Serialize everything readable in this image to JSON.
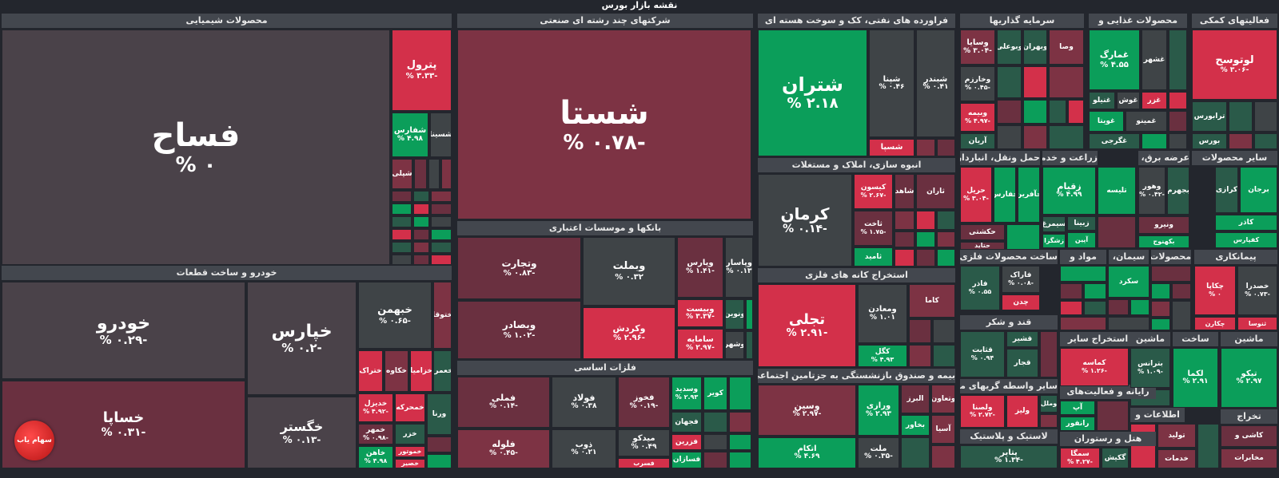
{
  "page": {
    "title": "نقشه بازار بورس"
  },
  "colors": {
    "neutral": "#4a4249",
    "dark_red": "#6a3040",
    "mid_red": "#7d3344",
    "red": "#d3304a",
    "dark_green": "#2a5a49",
    "green": "#0b9e5a",
    "gray": "#3f4447"
  },
  "logo": {
    "label": "سهام یاب",
    "icon": "chart-line-icon"
  },
  "sectors": [
    {
      "name": "محصولات شیمیایی"
    },
    {
      "name": "شرکتهای چند رشته ای صنعتی"
    },
    {
      "name": "فراورده های نفتی، کک و سوخت هسته ای"
    },
    {
      "name": "سرمایه گذاریها"
    },
    {
      "name": "محصولات غذایی و"
    },
    {
      "name": "فعالیتهای کمکی"
    },
    {
      "name": "خودرو و ساخت قطعات"
    },
    {
      "name": "بانکها و موسسات اعتباری"
    },
    {
      "name": "فلزات اساسی"
    },
    {
      "name": "انبوه سازی، املاک و مستغلات"
    },
    {
      "name": "استخراج کانه های فلزی"
    },
    {
      "name": "بیمه و صندوق بازنشستگی به جزتامین اجتماعی"
    },
    {
      "name": "حمل ونقل، انبارداری"
    },
    {
      "name": "زراعت و خدمات"
    },
    {
      "name": "عرضه برق، گاز"
    },
    {
      "name": "سایر محصولات"
    },
    {
      "name": "ساخت محصولات فلزی"
    },
    {
      "name": "مواد و"
    },
    {
      "name": "سیمان،"
    },
    {
      "name": "محصولات"
    },
    {
      "name": "پیمانکاری"
    },
    {
      "name": "قند و شکر"
    },
    {
      "name": "استخراج سایر"
    },
    {
      "name": "ماشین"
    },
    {
      "name": "ساخت"
    },
    {
      "name": "ماشین"
    },
    {
      "name": "سایر واسطه گریهای مالی"
    },
    {
      "name": "رایانه و فعالیت‌های"
    },
    {
      "name": "اطلاعات و"
    },
    {
      "name": "تخراج"
    },
    {
      "name": "لاستیک و پلاستیک"
    },
    {
      "name": "هتل و رستوران"
    }
  ],
  "tiles": [
    {
      "symbol": "فساح",
      "change": "۰ %"
    },
    {
      "symbol": "پترول",
      "change": "-۳.۳۳ %"
    },
    {
      "symbol": "شفارس",
      "change": "۴.۹۸ %"
    },
    {
      "symbol": "شسینا",
      "change": ""
    },
    {
      "symbol": "شپلی",
      "change": ""
    },
    {
      "symbol": "شستا",
      "change": "-۰.۷۸ %"
    },
    {
      "symbol": "شتران",
      "change": "۲.۱۸ %"
    },
    {
      "symbol": "شپنا",
      "change": "۰.۴۶ %"
    },
    {
      "symbol": "شبندر",
      "change": "۰.۴۱ %"
    },
    {
      "symbol": "شسپا",
      "change": ""
    },
    {
      "symbol": "وسایا",
      "change": "-۳.۰۴ %"
    },
    {
      "symbol": "وبوعلی",
      "change": ""
    },
    {
      "symbol": "وبهران",
      "change": ""
    },
    {
      "symbol": "وصا",
      "change": ""
    },
    {
      "symbol": "وخارزم",
      "change": "-۰.۴۵ %"
    },
    {
      "symbol": "وبیمه",
      "change": "-۴.۹۷ %"
    },
    {
      "symbol": "آریان",
      "change": ""
    },
    {
      "symbol": "غمارگ",
      "change": "۴.۵۵ %"
    },
    {
      "symbol": "غشهر",
      "change": ""
    },
    {
      "symbol": "غنیلو",
      "change": ""
    },
    {
      "symbol": "غوش",
      "change": ""
    },
    {
      "symbol": "غزر",
      "change": ""
    },
    {
      "symbol": "غویتا",
      "change": ""
    },
    {
      "symbol": "غمینو",
      "change": ""
    },
    {
      "symbol": "غگرجی",
      "change": ""
    },
    {
      "symbol": "لوتوسح",
      "change": "-۳.۰۶ %"
    },
    {
      "symbol": "ترابورس",
      "change": ""
    },
    {
      "symbol": "بورس",
      "change": ""
    },
    {
      "symbol": "خودرو",
      "change": "-۰.۲۹ %"
    },
    {
      "symbol": "خپارس",
      "change": "-۰.۲ %"
    },
    {
      "symbol": "خبهمن",
      "change": "-۰.۶۵ %"
    },
    {
      "symbol": "ختوقا",
      "change": ""
    },
    {
      "symbol": "خساپا",
      "change": "-۰.۳۱ %"
    },
    {
      "symbol": "خگستر",
      "change": "-۰.۱۳ %"
    },
    {
      "symbol": "ختراک",
      "change": ""
    },
    {
      "symbol": "خکاوه",
      "change": ""
    },
    {
      "symbol": "خزامیا",
      "change": ""
    },
    {
      "symbol": "خعمرا",
      "change": ""
    },
    {
      "symbol": "خدیزل",
      "change": "-۴.۹۲ %"
    },
    {
      "symbol": "خمحرکه",
      "change": ""
    },
    {
      "symbol": "ورنا",
      "change": ""
    },
    {
      "symbol": "خمهر",
      "change": "-۰.۹۸ %"
    },
    {
      "symbol": "خزر",
      "change": ""
    },
    {
      "symbol": "خاهن",
      "change": "۴.۹۸ %"
    },
    {
      "symbol": "خموتور",
      "change": ""
    },
    {
      "symbol": "خصیر",
      "change": ""
    },
    {
      "symbol": "وتجارت",
      "change": "-۰.۸۳ %"
    },
    {
      "symbol": "وبملت",
      "change": "۰.۳۲ %"
    },
    {
      "symbol": "وپارس",
      "change": "-۱.۴۱ %"
    },
    {
      "symbol": "وپاسار",
      "change": "۰.۱۳ %"
    },
    {
      "symbol": "وبصادر",
      "change": "-۱.۰۲ %"
    },
    {
      "symbol": "وکردش",
      "change": "-۲.۹۶ %"
    },
    {
      "symbol": "وبیست",
      "change": "-۳.۳۷ %"
    },
    {
      "symbol": "سامایه",
      "change": "-۲.۹۷ %"
    },
    {
      "symbol": "ونوین",
      "change": ""
    },
    {
      "symbol": "وشهر",
      "change": ""
    },
    {
      "symbol": "فملی",
      "change": "-۰.۱۴ %"
    },
    {
      "symbol": "فولاد",
      "change": "۰.۳۸ %"
    },
    {
      "symbol": "فخوز",
      "change": "-۰.۱۹ %"
    },
    {
      "symbol": "وسدید",
      "change": "۲.۹۳ %"
    },
    {
      "symbol": "کویر",
      "change": ""
    },
    {
      "symbol": "فجهان",
      "change": ""
    },
    {
      "symbol": "فلوله",
      "change": "-۰.۴۵ %"
    },
    {
      "symbol": "ذوب",
      "change": "۰.۲۱ %"
    },
    {
      "symbol": "میدکو",
      "change": "۰.۴۹ %"
    },
    {
      "symbol": "فزرین",
      "change": ""
    },
    {
      "symbol": "فسازان",
      "change": ""
    },
    {
      "symbol": "فسرب",
      "change": ""
    },
    {
      "symbol": "کرمان",
      "change": "-۰.۱۴ %"
    },
    {
      "symbol": "کیسون",
      "change": "-۲.۶۷ %"
    },
    {
      "symbol": "شاهد",
      "change": ""
    },
    {
      "symbol": "ثاران",
      "change": ""
    },
    {
      "symbol": "ثاخت",
      "change": "-۱.۷۵ %"
    },
    {
      "symbol": "ثامید",
      "change": ""
    },
    {
      "symbol": "تجلی",
      "change": "-۲.۹۱ %"
    },
    {
      "symbol": "ومعادن",
      "change": "۱.۰۱ %"
    },
    {
      "symbol": "کاما",
      "change": ""
    },
    {
      "symbol": "کگل",
      "change": "۴.۹۳ %"
    },
    {
      "symbol": "وسین",
      "change": "-۲.۹۷ %"
    },
    {
      "symbol": "ورازی",
      "change": "۲.۹۳ %"
    },
    {
      "symbol": "البرز",
      "change": ""
    },
    {
      "symbol": "وتعاون",
      "change": ""
    },
    {
      "symbol": "بخاور",
      "change": ""
    },
    {
      "symbol": "آسیا",
      "change": ""
    },
    {
      "symbol": "اتکام",
      "change": "۴.۶۹ %"
    },
    {
      "symbol": "ملت",
      "change": "-۰.۳۵ %"
    },
    {
      "symbol": "حریل",
      "change": "-۳.۰۴ %"
    },
    {
      "symbol": "حفارس",
      "change": ""
    },
    {
      "symbol": "حآفرین",
      "change": ""
    },
    {
      "symbol": "زقیام",
      "change": "۴.۹۹ %"
    },
    {
      "symbol": "تلیسه",
      "change": ""
    },
    {
      "symbol": "وهور",
      "change": "-۰.۴۲ %"
    },
    {
      "symbol": "بجهرم",
      "change": ""
    },
    {
      "symbol": "برجان",
      "change": ""
    },
    {
      "symbol": "کرازی",
      "change": ""
    },
    {
      "symbol": "حکشتی",
      "change": ""
    },
    {
      "symbol": "حتاید",
      "change": ""
    },
    {
      "symbol": "زبینا",
      "change": ""
    },
    {
      "symbol": "سیمرغ",
      "change": ""
    },
    {
      "symbol": "زشگزا",
      "change": ""
    },
    {
      "symbol": "آپین",
      "change": ""
    },
    {
      "symbol": "ونیرو",
      "change": ""
    },
    {
      "symbol": "بکهنوج",
      "change": ""
    },
    {
      "symbol": "کاذر",
      "change": ""
    },
    {
      "symbol": "کفپارس",
      "change": ""
    },
    {
      "symbol": "فاذر",
      "change": "۰.۵۵ %"
    },
    {
      "symbol": "فاراک",
      "change": "-۰.۰۸ %"
    },
    {
      "symbol": "چدن",
      "change": ""
    },
    {
      "symbol": "سکرد",
      "change": ""
    },
    {
      "symbol": "چکاپا",
      "change": "۰ %"
    },
    {
      "symbol": "خصدرا",
      "change": "-۰.۷۳ %"
    },
    {
      "symbol": "ثنوسا",
      "change": ""
    },
    {
      "symbol": "چکارن",
      "change": ""
    },
    {
      "symbol": "قثابت",
      "change": "۰.۹۴ %"
    },
    {
      "symbol": "قشیر",
      "change": ""
    },
    {
      "symbol": "قجار",
      "change": ""
    },
    {
      "symbol": "کماسه",
      "change": "-۱.۲۶ %"
    },
    {
      "symbol": "بترانس",
      "change": "-۱.۰۹ %"
    },
    {
      "symbol": "لکما",
      "change": "۲.۹۱ %"
    },
    {
      "symbol": "تیکو",
      "change": "۲.۹۷ %"
    },
    {
      "symbol": "ولصنا",
      "change": "-۲.۷۲ %"
    },
    {
      "symbol": "ولیز",
      "change": ""
    },
    {
      "symbol": "وملل",
      "change": ""
    },
    {
      "symbol": "آپ",
      "change": ""
    },
    {
      "symbol": "رانفور",
      "change": ""
    },
    {
      "symbol": "پتایر",
      "change": "-۱.۳۴ %"
    },
    {
      "symbol": "سمگا",
      "change": "-۴.۲۷ %"
    },
    {
      "symbol": "گکیش",
      "change": ""
    },
    {
      "symbol": "کاشی و",
      "change": ""
    },
    {
      "symbol": "تولید",
      "change": ""
    },
    {
      "symbol": "خدمات",
      "change": ""
    },
    {
      "symbol": "مخابرات",
      "change": ""
    }
  ]
}
